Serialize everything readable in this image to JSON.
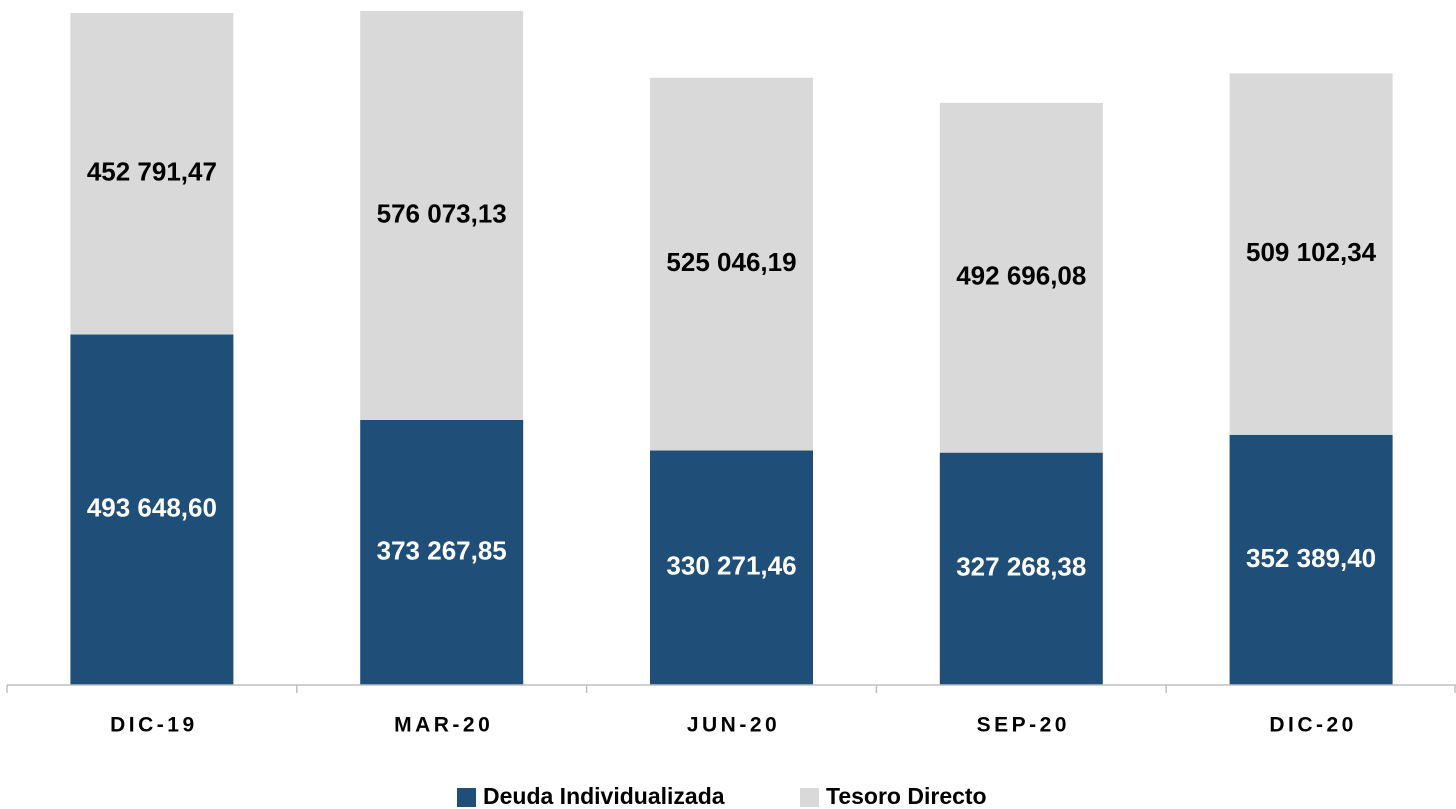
{
  "chart_data": {
    "type": "stacked_bar",
    "categories": [
      "DIC-19",
      "MAR-20",
      "JUN-20",
      "SEP-20",
      "DIC-20"
    ],
    "series": [
      {
        "name": "Deuda Individualizada",
        "color": "#1f4e79",
        "values": [
          493648.6,
          373267.85,
          330271.46,
          327268.38,
          352389.4
        ],
        "value_labels": [
          "493 648,60",
          "373 267,85",
          "330 271,46",
          "327 268,38",
          "352 389,40"
        ],
        "label_color": "#ffffff"
      },
      {
        "name": "Tesoro Directo",
        "color": "#d9d9d9",
        "values": [
          452791.47,
          576073.13,
          525046.19,
          492696.08,
          509102.34
        ],
        "value_labels": [
          "452 791,47",
          "576 073,13",
          "525 046,19",
          "492 696,08",
          "509 102,34"
        ],
        "label_color": "#000000"
      }
    ]
  }
}
